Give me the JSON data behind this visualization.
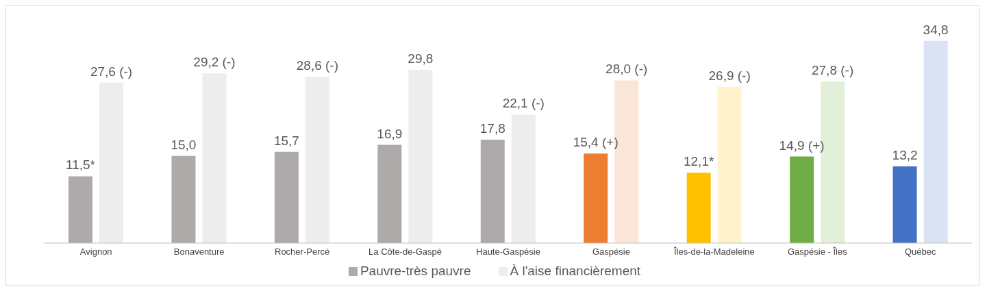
{
  "chart_data": {
    "type": "bar",
    "categories": [
      "Avignon",
      "Bonaventure",
      "Rocher-Percé",
      "La Côte-de-Gaspé",
      "Haute-Gaspésie",
      "Gaspésie",
      "Îles-de-la-Madeleine",
      "Gaspésie - Îles",
      "Québec"
    ],
    "series": [
      {
        "name": "Pauvre-très pauvre",
        "color": "#aeaaaa",
        "colors": [
          "#aeaaaa",
          "#aeaaaa",
          "#aeaaaa",
          "#aeaaaa",
          "#aeaaaa",
          "#ed7d31",
          "#ffc000",
          "#70ad47",
          "#4472c4"
        ],
        "values": [
          11.5,
          15.0,
          15.7,
          16.9,
          17.8,
          15.4,
          12.1,
          14.9,
          13.2
        ],
        "value_labels": [
          "11,5*",
          "15,0",
          "15,7",
          "16,9",
          "17,8",
          "15,4 (+)",
          "12,1*",
          "14,9 (+)",
          "13,2"
        ]
      },
      {
        "name": "À l'aise financièrement",
        "color": "#ededed",
        "colors": [
          "#ededed",
          "#ededed",
          "#ededed",
          "#ededed",
          "#ededed",
          "#fbe5d6",
          "#fff2cc",
          "#e2f0d9",
          "#dae3f3"
        ],
        "values": [
          27.6,
          29.2,
          28.6,
          29.8,
          22.1,
          28.0,
          26.9,
          27.8,
          34.8
        ],
        "value_labels": [
          "27,6 (-)",
          "29,2 (-)",
          "28,6 (-)",
          "29,8",
          "22,1 (-)",
          "28,0 (-)",
          "26,9 (-)",
          "27,8 (-)",
          "34,8"
        ]
      }
    ],
    "legend": "bottom",
    "grid": false
  }
}
